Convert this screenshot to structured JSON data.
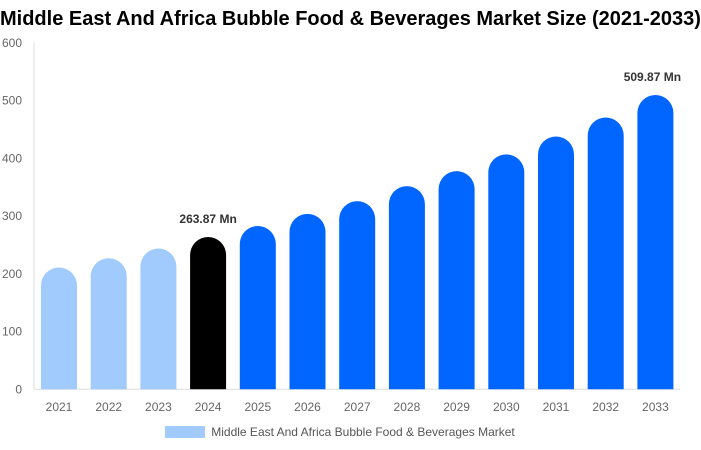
{
  "chart_data": {
    "type": "bar",
    "title": "Middle East And Africa Bubble Food & Beverages Market Size (2021-2033)",
    "categories": [
      "2021",
      "2022",
      "2023",
      "2024",
      "2025",
      "2026",
      "2027",
      "2028",
      "2029",
      "2030",
      "2031",
      "2032",
      "2033"
    ],
    "series": [
      {
        "name": "Middle East And Africa Bubble Food & Beverages Market",
        "values": [
          211,
          227,
          244,
          263.87,
          283,
          304,
          326,
          352,
          378,
          407,
          438,
          471,
          509.87
        ]
      }
    ],
    "data_labels": {
      "3": "263.87 Mn",
      "12": "509.87 Mn"
    },
    "ylim": [
      0,
      600
    ],
    "yticks": [
      0,
      100,
      200,
      300,
      400,
      500,
      600
    ],
    "grid": false,
    "legend": "bottom",
    "colors": {
      "historical": "#a0cbfc",
      "current": "#000000",
      "forecast": "#0066ff"
    }
  }
}
